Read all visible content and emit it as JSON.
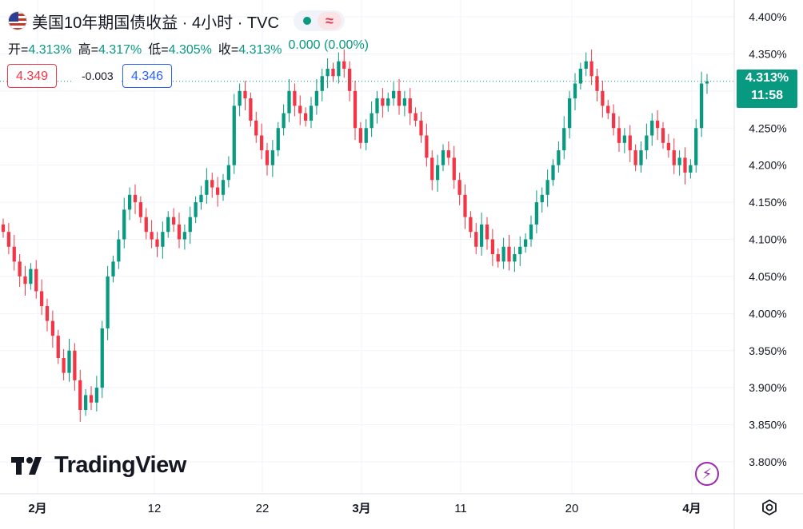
{
  "header": {
    "title": "美国10年期国债收益 · 4小时 · TVC",
    "wave_symbol": "≈"
  },
  "ohlc": {
    "open_label": "开=",
    "open_value": "4.313%",
    "high_label": "高=",
    "high_value": "4.317%",
    "low_label": "低=",
    "low_value": "4.305%",
    "close_label": "收=",
    "close_value": "4.313%",
    "change": "0.000 (0.00%)"
  },
  "quote": {
    "bid": "4.349",
    "spread": "-0.003",
    "ask": "4.346"
  },
  "price_label": {
    "price": "4.313%",
    "countdown": "11:58"
  },
  "logo_text": "TradingView",
  "colors": {
    "up": "#089981",
    "down": "#f23645",
    "grid": "#f0f3fa",
    "axis_text": "#131722",
    "price_line": "#089981"
  },
  "chart_data": {
    "type": "candlestick",
    "interval": "4小时",
    "ylim": [
      3.775,
      4.412
    ],
    "y_ticks": [
      "4.400%",
      "4.350%",
      "4.300%",
      "4.250%",
      "4.200%",
      "4.150%",
      "4.100%",
      "4.050%",
      "4.000%",
      "3.950%",
      "3.900%",
      "3.850%",
      "3.800%"
    ],
    "x_ticks": [
      "2月",
      "12",
      "22",
      "3月",
      "11",
      "20",
      "4月"
    ],
    "current_price": 4.313,
    "candles": [
      [
        4.12,
        4.11
      ],
      [
        4.11,
        4.09
      ],
      [
        4.09,
        4.07
      ],
      [
        4.07,
        4.05
      ],
      [
        4.05,
        4.04
      ],
      [
        4.04,
        4.06
      ],
      [
        4.06,
        4.03
      ],
      [
        4.03,
        4.01
      ],
      [
        4.01,
        3.99
      ],
      [
        3.99,
        3.97
      ],
      [
        3.97,
        3.94
      ],
      [
        3.94,
        3.92
      ],
      [
        3.92,
        3.95
      ],
      [
        3.95,
        3.91
      ],
      [
        3.91,
        3.87
      ],
      [
        3.87,
        3.89
      ],
      [
        3.89,
        3.88
      ],
      [
        3.88,
        3.9
      ],
      [
        3.9,
        3.98
      ],
      [
        3.98,
        4.05
      ],
      [
        4.05,
        4.07
      ],
      [
        4.07,
        4.1
      ],
      [
        4.1,
        4.14
      ],
      [
        4.14,
        4.16
      ],
      [
        4.16,
        4.15
      ],
      [
        4.15,
        4.13
      ],
      [
        4.13,
        4.11
      ],
      [
        4.11,
        4.1
      ],
      [
        4.1,
        4.09
      ],
      [
        4.09,
        4.11
      ],
      [
        4.11,
        4.13
      ],
      [
        4.13,
        4.12
      ],
      [
        4.12,
        4.1
      ],
      [
        4.1,
        4.11
      ],
      [
        4.11,
        4.13
      ],
      [
        4.13,
        4.15
      ],
      [
        4.15,
        4.16
      ],
      [
        4.16,
        4.18
      ],
      [
        4.18,
        4.17
      ],
      [
        4.17,
        4.16
      ],
      [
        4.16,
        4.18
      ],
      [
        4.18,
        4.2
      ],
      [
        4.2,
        4.28
      ],
      [
        4.28,
        4.3
      ],
      [
        4.3,
        4.29
      ],
      [
        4.29,
        4.26
      ],
      [
        4.26,
        4.24
      ],
      [
        4.24,
        4.22
      ],
      [
        4.22,
        4.2
      ],
      [
        4.2,
        4.22
      ],
      [
        4.22,
        4.25
      ],
      [
        4.25,
        4.27
      ],
      [
        4.27,
        4.3
      ],
      [
        4.3,
        4.28
      ],
      [
        4.28,
        4.27
      ],
      [
        4.27,
        4.26
      ],
      [
        4.26,
        4.28
      ],
      [
        4.28,
        4.3
      ],
      [
        4.3,
        4.32
      ],
      [
        4.32,
        4.33
      ],
      [
        4.33,
        4.32
      ],
      [
        4.32,
        4.34
      ],
      [
        4.34,
        4.33
      ],
      [
        4.33,
        4.3
      ],
      [
        4.3,
        4.25
      ],
      [
        4.25,
        4.23
      ],
      [
        4.23,
        4.25
      ],
      [
        4.25,
        4.27
      ],
      [
        4.27,
        4.29
      ],
      [
        4.29,
        4.28
      ],
      [
        4.28,
        4.29
      ],
      [
        4.29,
        4.3
      ],
      [
        4.3,
        4.28
      ],
      [
        4.28,
        4.29
      ],
      [
        4.29,
        4.27
      ],
      [
        4.27,
        4.26
      ],
      [
        4.26,
        4.24
      ],
      [
        4.24,
        4.21
      ],
      [
        4.21,
        4.18
      ],
      [
        4.18,
        4.2
      ],
      [
        4.2,
        4.22
      ],
      [
        4.22,
        4.21
      ],
      [
        4.21,
        4.18
      ],
      [
        4.18,
        4.16
      ],
      [
        4.16,
        4.13
      ],
      [
        4.13,
        4.11
      ],
      [
        4.11,
        4.09
      ],
      [
        4.09,
        4.12
      ],
      [
        4.12,
        4.1
      ],
      [
        4.1,
        4.08
      ],
      [
        4.08,
        4.07
      ],
      [
        4.07,
        4.09
      ],
      [
        4.09,
        4.07
      ],
      [
        4.07,
        4.08
      ],
      [
        4.08,
        4.09
      ],
      [
        4.09,
        4.1
      ],
      [
        4.1,
        4.12
      ],
      [
        4.12,
        4.15
      ],
      [
        4.15,
        4.16
      ],
      [
        4.16,
        4.18
      ],
      [
        4.18,
        4.2
      ],
      [
        4.2,
        4.22
      ],
      [
        4.22,
        4.25
      ],
      [
        4.25,
        4.29
      ],
      [
        4.29,
        4.31
      ],
      [
        4.31,
        4.33
      ],
      [
        4.33,
        4.34
      ],
      [
        4.34,
        4.32
      ],
      [
        4.32,
        4.3
      ],
      [
        4.3,
        4.28
      ],
      [
        4.28,
        4.27
      ],
      [
        4.27,
        4.25
      ],
      [
        4.25,
        4.23
      ],
      [
        4.23,
        4.24
      ],
      [
        4.24,
        4.22
      ],
      [
        4.22,
        4.2
      ],
      [
        4.2,
        4.22
      ],
      [
        4.22,
        4.24
      ],
      [
        4.24,
        4.26
      ],
      [
        4.26,
        4.25
      ],
      [
        4.25,
        4.23
      ],
      [
        4.23,
        4.22
      ],
      [
        4.22,
        4.2
      ],
      [
        4.2,
        4.21
      ],
      [
        4.21,
        4.19
      ],
      [
        4.19,
        4.2
      ],
      [
        4.2,
        4.25
      ],
      [
        4.25,
        4.31
      ],
      [
        4.31,
        4.313
      ]
    ]
  }
}
